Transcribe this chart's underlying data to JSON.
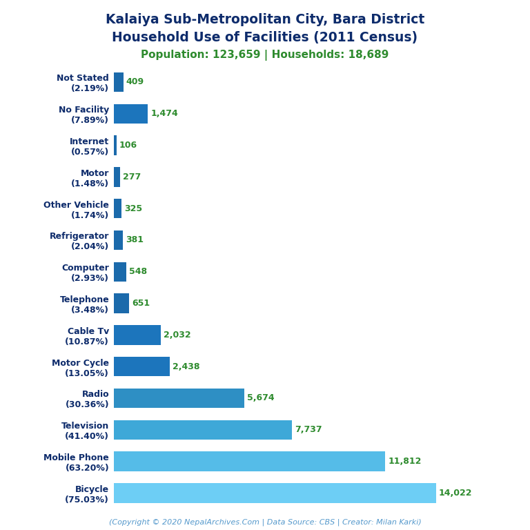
{
  "title_line1": "Kalaiya Sub-Metropolitan City, Bara District",
  "title_line2": "Household Use of Facilities (2011 Census)",
  "subtitle": "Population: 123,659 | Households: 18,689",
  "footer": "(Copyright © 2020 NepalArchives.Com | Data Source: CBS | Creator: Milan Karki)",
  "categories": [
    "Not Stated\n(2.19%)",
    "No Facility\n(7.89%)",
    "Internet\n(0.57%)",
    "Motor\n(1.48%)",
    "Other Vehicle\n(1.74%)",
    "Refrigerator\n(2.04%)",
    "Computer\n(2.93%)",
    "Telephone\n(3.48%)",
    "Cable Tv\n(10.87%)",
    "Motor Cycle\n(13.05%)",
    "Radio\n(30.36%)",
    "Television\n(41.40%)",
    "Mobile Phone\n(63.20%)",
    "Bicycle\n(75.03%)"
  ],
  "values": [
    409,
    1474,
    106,
    277,
    325,
    381,
    548,
    651,
    2032,
    2438,
    5674,
    7737,
    11812,
    14022
  ],
  "value_labels": [
    "409",
    "1,474",
    "106",
    "277",
    "325",
    "381",
    "548",
    "651",
    "2,032",
    "2,438",
    "5,674",
    "7,737",
    "11,812",
    "14,022"
  ],
  "bar_colors": [
    "#1b6aab",
    "#1c75bc",
    "#1b6aab",
    "#1b6aab",
    "#1b6aab",
    "#1b6aab",
    "#1b6aab",
    "#1b6aab",
    "#1c75bc",
    "#1c75bc",
    "#2e8fc4",
    "#3ea8d8",
    "#55bce8",
    "#6dcef5"
  ],
  "title_color": "#0d2b6b",
  "subtitle_color": "#2e8b2e",
  "value_label_color": "#2e8b2e",
  "footer_color": "#5599cc",
  "ylabel_color": "#0d2b6b",
  "background_color": "#ffffff",
  "xlim": [
    0,
    15800
  ]
}
